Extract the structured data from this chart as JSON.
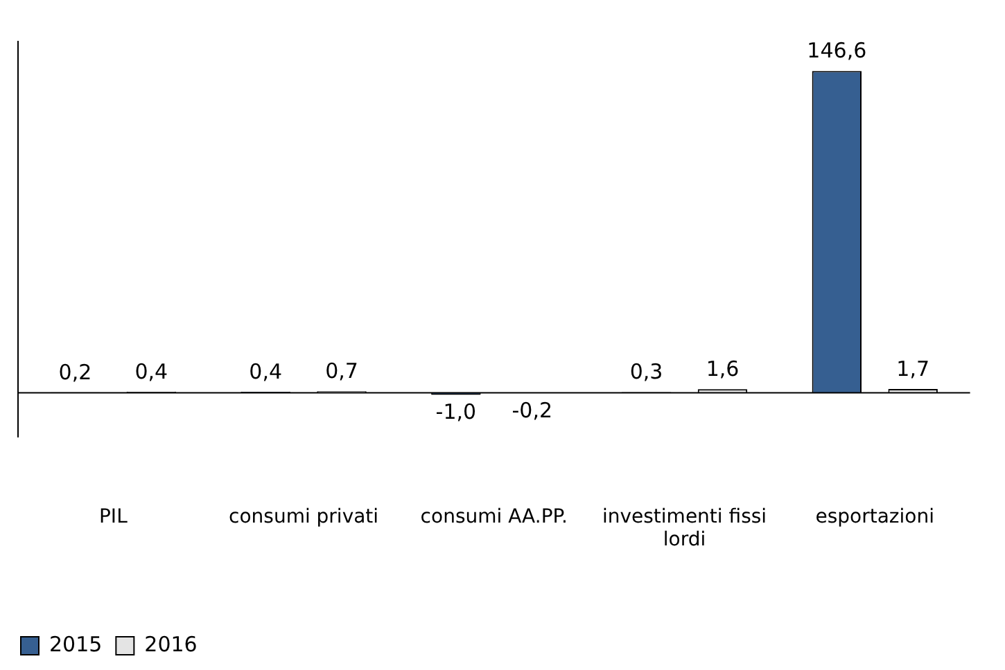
{
  "chart_data": {
    "type": "bar",
    "categories": [
      "PIL",
      "consumi privati",
      "consumi AA.PP.",
      "investimenti fissi lordi",
      "esportazioni"
    ],
    "series": [
      {
        "name": "2015",
        "color": "#365f91",
        "values": [
          0.2,
          0.4,
          -1.0,
          0.3,
          146.6
        ],
        "value_labels": [
          "0,2",
          "0,4",
          "-1,0",
          "0,3",
          "146,6"
        ]
      },
      {
        "name": "2016",
        "color": "#e4e4e4",
        "values": [
          0.4,
          0.7,
          -0.2,
          1.6,
          1.7
        ],
        "value_labels": [
          "0,4",
          "0,7",
          "-0,2",
          "1,6",
          "1,7"
        ]
      }
    ],
    "legend": "bottom left",
    "grid": false
  }
}
